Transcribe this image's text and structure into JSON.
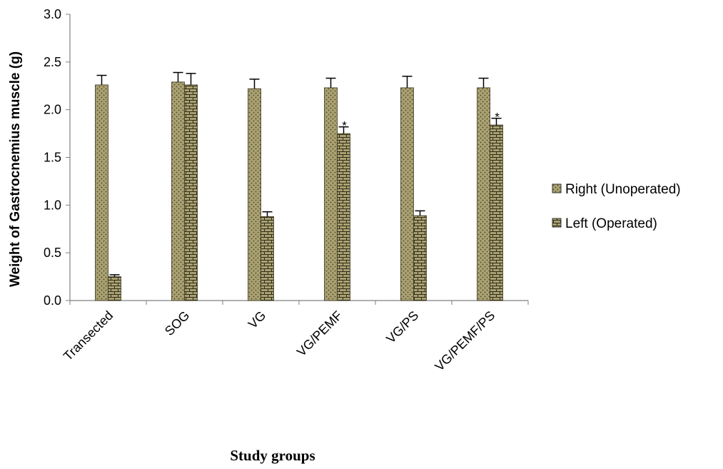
{
  "chart_data": {
    "type": "bar",
    "xlabel": "Study groups",
    "ylabel": "Weight of Gastrocnemius muscle (g)",
    "ylim": [
      0,
      3.0
    ],
    "yticks": [
      "0.0",
      "0.5",
      "1.0",
      "1.5",
      "2.0",
      "2.5",
      "3.0"
    ],
    "categories": [
      "Transected",
      "SOG",
      "VG",
      "VG/PEMF",
      "VG/PS",
      "VG/PEMF/PS"
    ],
    "series": [
      {
        "name": "Right (Unoperated)",
        "color": "#a8a070",
        "values": [
          2.26,
          2.29,
          2.22,
          2.23,
          2.23,
          2.23
        ],
        "errors": [
          0.1,
          0.1,
          0.1,
          0.1,
          0.12,
          0.1
        ]
      },
      {
        "name": "Left (Operated)",
        "color": "#a8a070",
        "values": [
          0.25,
          2.26,
          0.88,
          1.75,
          0.89,
          1.84
        ],
        "errors": [
          0.02,
          0.12,
          0.05,
          0.07,
          0.05,
          0.07
        ]
      }
    ],
    "annotations": [
      {
        "category": "VG/PEMF",
        "series": 1,
        "text": "*"
      },
      {
        "category": "VG/PEMF/PS",
        "series": 1,
        "text": "*"
      }
    ],
    "grid": false,
    "legend": "right"
  }
}
